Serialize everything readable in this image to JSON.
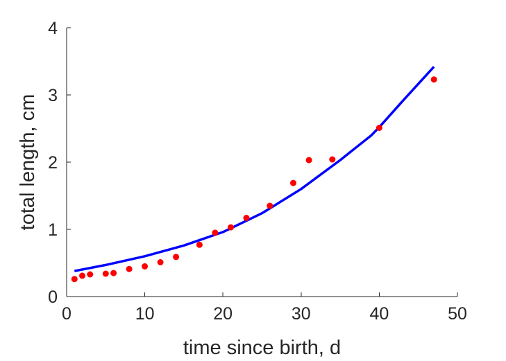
{
  "chart_data": {
    "type": "scatter",
    "title": "",
    "xlabel": "time since birth, d",
    "ylabel": "total length, cm",
    "xlim": [
      0,
      50
    ],
    "ylim": [
      0,
      4
    ],
    "xticks": [
      0,
      10,
      20,
      30,
      40,
      50
    ],
    "yticks": [
      0,
      1,
      2,
      3,
      4
    ],
    "xtick_labels": [
      "0",
      "10",
      "20",
      "30",
      "40",
      "50"
    ],
    "ytick_labels": [
      "0",
      "1",
      "2",
      "3",
      "4"
    ],
    "grid": false,
    "series": [
      {
        "kind": "scatter",
        "color": "#ff0000",
        "x": [
          1,
          2,
          3,
          5,
          6,
          8,
          10,
          12,
          14,
          17,
          19,
          21,
          23,
          26,
          29,
          31,
          34,
          40,
          47
        ],
        "y": [
          0.26,
          0.31,
          0.33,
          0.34,
          0.35,
          0.41,
          0.45,
          0.51,
          0.59,
          0.77,
          0.95,
          1.03,
          1.17,
          1.35,
          1.69,
          2.03,
          2.04,
          2.51,
          3.23
        ]
      },
      {
        "kind": "line",
        "color": "#0000ff",
        "x": [
          1,
          5,
          10,
          15,
          20,
          25,
          30,
          35,
          39,
          40,
          43,
          47
        ],
        "y": [
          0.38,
          0.47,
          0.6,
          0.76,
          0.96,
          1.24,
          1.6,
          2.03,
          2.4,
          2.52,
          2.91,
          3.42
        ]
      }
    ]
  }
}
